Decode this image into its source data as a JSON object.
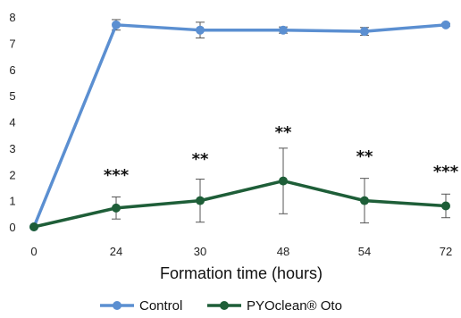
{
  "chart_data": {
    "type": "line",
    "categories": [
      "0",
      "24",
      "30",
      "48",
      "54",
      "72"
    ],
    "xlabel": "Formation time (hours)",
    "ylabel": "",
    "ylim": [
      0,
      8
    ],
    "yticks": [
      "0",
      "1",
      "2",
      "3",
      "4",
      "5",
      "6",
      "7",
      "8"
    ],
    "grid": false,
    "legend_position": "bottom",
    "series": [
      {
        "name": "Control",
        "color": "#5b8fd1",
        "values": [
          0,
          7.7,
          7.5,
          7.5,
          7.45,
          7.7
        ],
        "errors": [
          0,
          0.2,
          0.3,
          0.12,
          0.15,
          0.05
        ]
      },
      {
        "name": "PYOclean® Oto",
        "color": "#1e5e38",
        "values": [
          0,
          0.72,
          1.0,
          1.75,
          1.0,
          0.8
        ],
        "errors": [
          0,
          0.42,
          0.82,
          1.25,
          0.85,
          0.45
        ]
      }
    ],
    "annotations": [
      "",
      "***",
      "**",
      "**",
      "**",
      "***"
    ]
  }
}
